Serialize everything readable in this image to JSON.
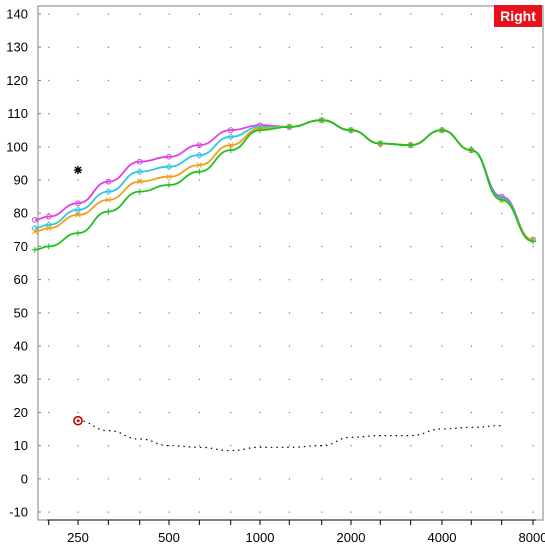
{
  "badge": {
    "label": "Right",
    "color": "#e8101a"
  },
  "chart_data": {
    "type": "line",
    "title": "",
    "xlabel": "",
    "ylabel": "",
    "x_scale": "log",
    "xlim": [
      175,
      8500
    ],
    "ylim": [
      -10,
      140
    ],
    "yticks": [
      -10,
      0,
      10,
      20,
      30,
      40,
      50,
      60,
      70,
      80,
      90,
      100,
      110,
      120,
      130,
      140
    ],
    "xticks": [
      250,
      500,
      1000,
      2000,
      4000,
      8000
    ],
    "x_minor_ticks": [
      200,
      250,
      315,
      400,
      500,
      630,
      800,
      1000,
      1250,
      1600,
      2000,
      2500,
      3150,
      4000,
      5000,
      6300,
      8000
    ],
    "grid": "dotted",
    "series": [
      {
        "color": "#e040e0",
        "marker": "circle",
        "x": [
          180,
          200,
          250,
          315,
          400,
          500,
          630,
          800,
          1000,
          1250,
          1600,
          2000,
          2500,
          3150,
          4000,
          5000,
          6300,
          8000
        ],
        "y": [
          78,
          79,
          83,
          89.5,
          95.5,
          97,
          100.5,
          105,
          106.5,
          106,
          108,
          105,
          101,
          100.5,
          105,
          99,
          85,
          72
        ]
      },
      {
        "color": "#30c8e0",
        "marker": "diamond",
        "x": [
          180,
          200,
          250,
          315,
          400,
          500,
          630,
          800,
          1000,
          1250,
          1600,
          2000,
          2500,
          3150,
          4000,
          5000,
          6300,
          8000
        ],
        "y": [
          75.5,
          76.5,
          81,
          86.5,
          92.5,
          94,
          97.5,
          103,
          106,
          106,
          108,
          105,
          101,
          100.5,
          105,
          99,
          84.5,
          72
        ]
      },
      {
        "color": "#f0a020",
        "marker": "x",
        "x": [
          180,
          200,
          250,
          315,
          400,
          500,
          630,
          800,
          1000,
          1250,
          1600,
          2000,
          2500,
          3150,
          4000,
          5000,
          6300,
          8000
        ],
        "y": [
          74.5,
          75.5,
          79.5,
          84,
          89.5,
          91,
          94.5,
          100.5,
          105.5,
          106,
          108,
          105,
          101,
          100.5,
          105,
          99,
          84,
          72
        ]
      },
      {
        "color": "#20c020",
        "marker": "plus",
        "x": [
          180,
          200,
          250,
          315,
          400,
          500,
          630,
          800,
          1000,
          1250,
          1600,
          2000,
          2500,
          3150,
          4000,
          5000,
          6300,
          8000
        ],
        "y": [
          69,
          70,
          74,
          80.5,
          86.5,
          88.5,
          92.5,
          99,
          105,
          106,
          108,
          105,
          101,
          100.5,
          105,
          99,
          84,
          71.5
        ]
      },
      {
        "color": "#000000",
        "style": "dotted",
        "x": [
          250,
          315,
          400,
          500,
          630,
          800,
          1000,
          1250,
          1600,
          2000,
          2500,
          3150,
          4000,
          5000,
          6300
        ],
        "y": [
          17.5,
          14.5,
          12,
          10,
          9.5,
          8.5,
          9.5,
          9.5,
          10,
          12.5,
          13,
          13,
          15,
          15.5,
          16
        ]
      }
    ],
    "markers": [
      {
        "symbol": "circle",
        "color": "#c00000",
        "x": 250,
        "y": 17.5
      },
      {
        "symbol": "asterisk",
        "color": "#000000",
        "x": 250,
        "y": 93
      }
    ]
  }
}
